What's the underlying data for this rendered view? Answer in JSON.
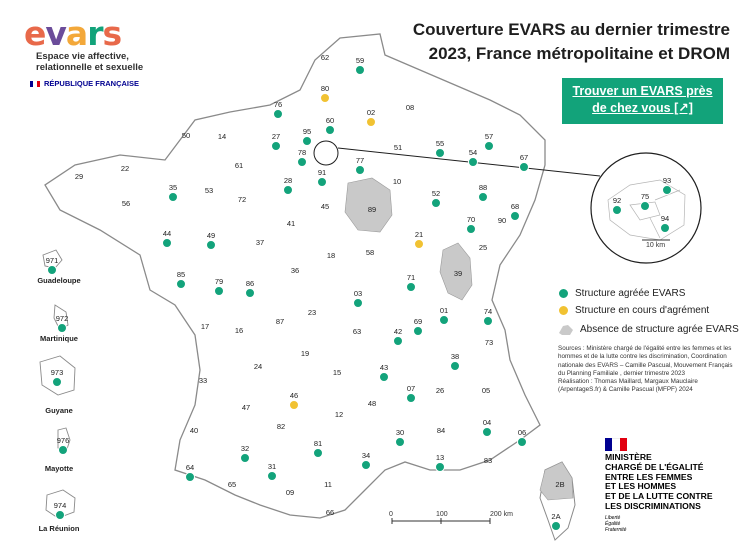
{
  "logo": {
    "letters": [
      {
        "char": "e",
        "color": "#e8694a"
      },
      {
        "char": "v",
        "color": "#6b4c9a"
      },
      {
        "char": "a",
        "color": "#f3a83a"
      },
      {
        "char": "r",
        "color": "#12a37a"
      },
      {
        "char": "s",
        "color": "#e8694a"
      }
    ],
    "tagline": "Espace vie affective, relationnelle et sexuelle",
    "republic": "RÉPUBLIQUE FRANÇAISE"
  },
  "title_line1": "Couverture EVARS au dernier trimestre",
  "title_line2": "2023, France métropolitaine et DROM",
  "cta": {
    "line1": "Trouver un EVARS près",
    "line2": "de chez vous [↗]"
  },
  "colors": {
    "agreed": "#13a37b",
    "pending": "#f1c232",
    "absent": "#c9c9c9",
    "cta": "#12a37a",
    "border": "#9a9a9a"
  },
  "legend": {
    "agreed": "Structure agréée EVARS",
    "pending": "Structure en cours d'agrément",
    "absent": "Absence de structure agrée EVARS"
  },
  "sources": {
    "text": "Sources : Ministère chargé de l'égalité entre les femmes et les hommes et de la lutte contre les discrimination, Coordination nationale des EVARS – Camille Pascual, Mouvement Français du Planning Familiale , dernier trimestre 2023",
    "credit": "Réalisation : Thomas Maillard, Margaux Mauclaire (ArpentageS.fr) & Camille Pascual (MFPF) 2024"
  },
  "ministry": {
    "lines": [
      "MINISTÈRE",
      "CHARGÉ DE L'ÉGALITÉ",
      "ENTRE LES FEMMES",
      "ET LES HOMMES",
      "ET DE LA LUTTE CONTRE",
      "LES DISCRIMINATIONS"
    ],
    "motto": [
      "Liberté",
      "Égalité",
      "Fraternité"
    ]
  },
  "scale": {
    "labels": [
      "0",
      "100",
      "200 km"
    ]
  },
  "inset_scale": "10 km",
  "drom": [
    {
      "code": "971",
      "name": "Guadeloupe"
    },
    {
      "code": "972",
      "name": "Martinique"
    },
    {
      "code": "973",
      "name": "Guyane"
    },
    {
      "code": "976",
      "name": "Mayotte"
    },
    {
      "code": "974",
      "name": "La Réunion"
    }
  ],
  "departments": [
    {
      "code": "62",
      "status": "none"
    },
    {
      "code": "59",
      "status": "agreed"
    },
    {
      "code": "80",
      "status": "pending"
    },
    {
      "code": "76",
      "status": "agreed"
    },
    {
      "code": "02",
      "status": "pending"
    },
    {
      "code": "08",
      "status": "none"
    },
    {
      "code": "60",
      "status": "agreed"
    },
    {
      "code": "50",
      "status": "none"
    },
    {
      "code": "14",
      "status": "none"
    },
    {
      "code": "27",
      "status": "agreed"
    },
    {
      "code": "95",
      "status": "agreed"
    },
    {
      "code": "78",
      "status": "agreed"
    },
    {
      "code": "77",
      "status": "agreed"
    },
    {
      "code": "91",
      "status": "agreed"
    },
    {
      "code": "51",
      "status": "none"
    },
    {
      "code": "55",
      "status": "agreed"
    },
    {
      "code": "54",
      "status": "agreed"
    },
    {
      "code": "57",
      "status": "agreed"
    },
    {
      "code": "67",
      "status": "agreed"
    },
    {
      "code": "22",
      "status": "none"
    },
    {
      "code": "29",
      "status": "none"
    },
    {
      "code": "61",
      "status": "none"
    },
    {
      "code": "28",
      "status": "agreed"
    },
    {
      "code": "10",
      "status": "none"
    },
    {
      "code": "52",
      "status": "agreed"
    },
    {
      "code": "88",
      "status": "agreed"
    },
    {
      "code": "68",
      "status": "agreed"
    },
    {
      "code": "35",
      "status": "agreed"
    },
    {
      "code": "53",
      "status": "none"
    },
    {
      "code": "72",
      "status": "none"
    },
    {
      "code": "45",
      "status": "none"
    },
    {
      "code": "89",
      "status": "absent"
    },
    {
      "code": "56",
      "status": "none"
    },
    {
      "code": "44",
      "status": "agreed"
    },
    {
      "code": "49",
      "status": "agreed"
    },
    {
      "code": "37",
      "status": "none"
    },
    {
      "code": "41",
      "status": "none"
    },
    {
      "code": "21",
      "status": "pending"
    },
    {
      "code": "70",
      "status": "agreed"
    },
    {
      "code": "90",
      "status": "none"
    },
    {
      "code": "25",
      "status": "none"
    },
    {
      "code": "18",
      "status": "none"
    },
    {
      "code": "58",
      "status": "none"
    },
    {
      "code": "39",
      "status": "absent"
    },
    {
      "code": "36",
      "status": "none"
    },
    {
      "code": "85",
      "status": "agreed"
    },
    {
      "code": "79",
      "status": "agreed"
    },
    {
      "code": "86",
      "status": "agreed"
    },
    {
      "code": "71",
      "status": "agreed"
    },
    {
      "code": "03",
      "status": "agreed"
    },
    {
      "code": "01",
      "status": "agreed"
    },
    {
      "code": "74",
      "status": "agreed"
    },
    {
      "code": "17",
      "status": "none"
    },
    {
      "code": "16",
      "status": "none"
    },
    {
      "code": "87",
      "status": "none"
    },
    {
      "code": "23",
      "status": "none"
    },
    {
      "code": "63",
      "status": "none"
    },
    {
      "code": "42",
      "status": "agreed"
    },
    {
      "code": "69",
      "status": "agreed"
    },
    {
      "code": "73",
      "status": "none"
    },
    {
      "code": "19",
      "status": "none"
    },
    {
      "code": "15",
      "status": "none"
    },
    {
      "code": "43",
      "status": "agreed"
    },
    {
      "code": "38",
      "status": "agreed"
    },
    {
      "code": "24",
      "status": "none"
    },
    {
      "code": "33",
      "status": "none"
    },
    {
      "code": "46",
      "status": "pending"
    },
    {
      "code": "12",
      "status": "none"
    },
    {
      "code": "48",
      "status": "none"
    },
    {
      "code": "07",
      "status": "agreed"
    },
    {
      "code": "26",
      "status": "none"
    },
    {
      "code": "05",
      "status": "none"
    },
    {
      "code": "47",
      "status": "none"
    },
    {
      "code": "40",
      "status": "none"
    },
    {
      "code": "82",
      "status": "none"
    },
    {
      "code": "81",
      "status": "agreed"
    },
    {
      "code": "30",
      "status": "agreed"
    },
    {
      "code": "84",
      "status": "none"
    },
    {
      "code": "04",
      "status": "agreed"
    },
    {
      "code": "06",
      "status": "agreed"
    },
    {
      "code": "32",
      "status": "agreed"
    },
    {
      "code": "31",
      "status": "agreed"
    },
    {
      "code": "34",
      "status": "agreed"
    },
    {
      "code": "13",
      "status": "agreed"
    },
    {
      "code": "83",
      "status": "none"
    },
    {
      "code": "64",
      "status": "agreed"
    },
    {
      "code": "65",
      "status": "none"
    },
    {
      "code": "09",
      "status": "none"
    },
    {
      "code": "11",
      "status": "none"
    },
    {
      "code": "66",
      "status": "none"
    },
    {
      "code": "2B",
      "status": "absent"
    },
    {
      "code": "2A",
      "status": "agreed"
    }
  ],
  "inset_departments": [
    {
      "code": "93",
      "status": "agreed"
    },
    {
      "code": "92",
      "status": "agreed"
    },
    {
      "code": "75",
      "status": "agreed"
    },
    {
      "code": "94",
      "status": "agreed"
    }
  ]
}
